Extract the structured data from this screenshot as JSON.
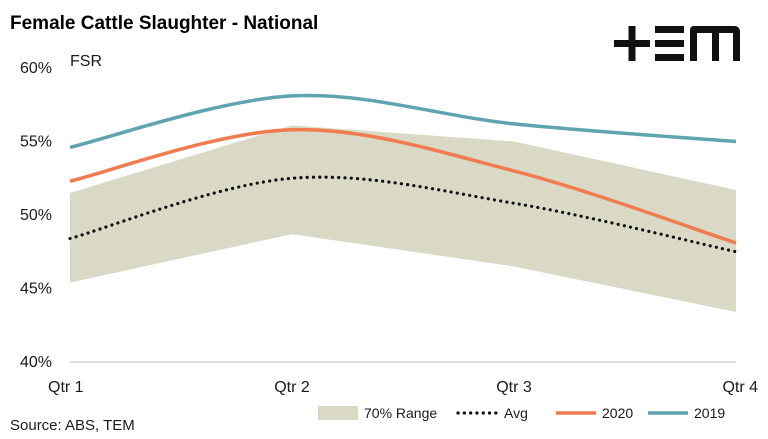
{
  "brand": {
    "logo_text": "+EM",
    "logo_color": "#111111"
  },
  "source": "Source: ABS, TEM",
  "chart_data": {
    "type": "line",
    "title": "Female Cattle Slaughter - National",
    "ylabel": "FSR",
    "xlabel": "",
    "categories": [
      "Qtr 1",
      "Qtr 2",
      "Qtr 3",
      "Qtr 4"
    ],
    "y_ticks": [
      "40%",
      "45%",
      "50%",
      "55%",
      "60%"
    ],
    "ylim": [
      40,
      60
    ],
    "y_unit": "%",
    "grid": false,
    "legend_position": "bottom-right",
    "range_band": {
      "name": "70% Range",
      "color": "#d9d9c6",
      "lower": [
        45.4,
        48.7,
        46.5,
        43.4
      ],
      "upper": [
        51.5,
        56.1,
        55.0,
        51.7
      ]
    },
    "series": [
      {
        "name": "Avg",
        "color": "#111111",
        "style": "dotted",
        "values": [
          48.4,
          52.5,
          50.8,
          47.5
        ]
      },
      {
        "name": "2020",
        "color": "#f07b4e",
        "style": "solid",
        "values": [
          52.3,
          55.8,
          53.0,
          48.1
        ]
      },
      {
        "name": "2019",
        "color": "#5fa4ae",
        "style": "solid",
        "values": [
          54.6,
          58.1,
          56.2,
          55.0
        ]
      }
    ]
  }
}
